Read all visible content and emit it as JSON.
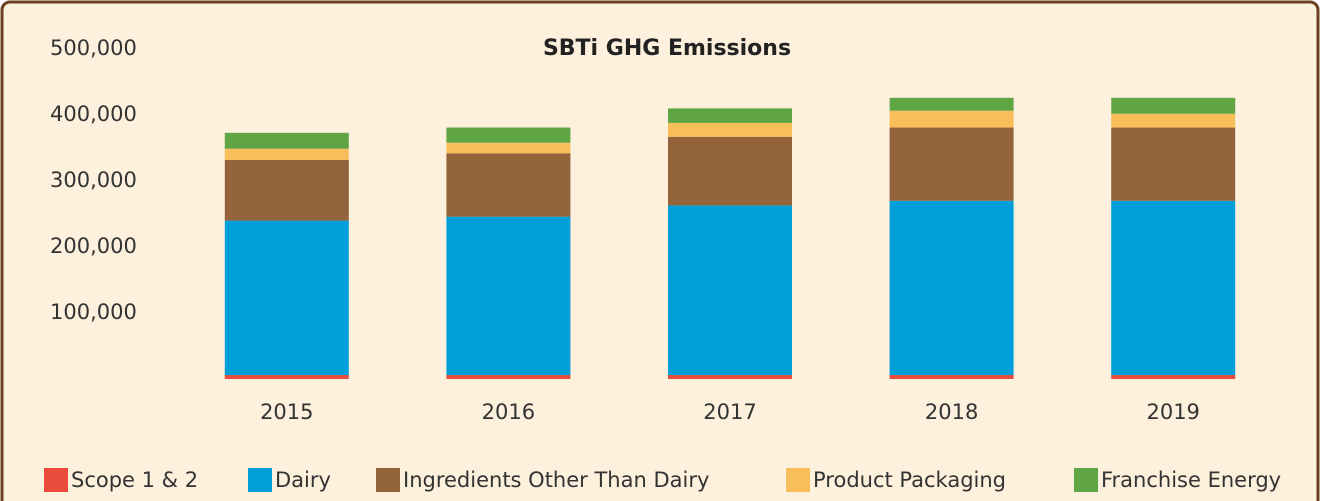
{
  "chart_data": {
    "type": "stacked_bar",
    "title": "SBTi GHG Emissions",
    "categories": [
      "2015",
      "2016",
      "2017",
      "2018",
      "2019"
    ],
    "series": [
      {
        "name": "Scope 1 & 2",
        "color": "#e84c3d",
        "values": [
          6000,
          6000,
          6000,
          6000,
          6000
        ]
      },
      {
        "name": "Dairy",
        "color": "#009fda",
        "values": [
          234000,
          240000,
          257000,
          264000,
          264000
        ]
      },
      {
        "name": "Ingredients Other Than Dairy",
        "color": "#93643c",
        "values": [
          92000,
          96000,
          104000,
          111000,
          111000
        ]
      },
      {
        "name": "Product Packaging",
        "color": "#f7be5a",
        "values": [
          17000,
          16000,
          21000,
          25500,
          21000
        ]
      },
      {
        "name": "Franchise Energy",
        "color": "#5fa544",
        "values": [
          24000,
          23000,
          22000,
          19500,
          24000
        ]
      }
    ],
    "ylim": [
      0,
      500000
    ],
    "yticks": [
      {
        "value": 100000,
        "label": "100,000"
      },
      {
        "value": 200000,
        "label": "200,000"
      },
      {
        "value": 300000,
        "label": "300,000"
      },
      {
        "value": 400000,
        "label": "400,000"
      },
      {
        "value": 500000,
        "label": "500,000"
      }
    ],
    "legend": "bottom"
  }
}
